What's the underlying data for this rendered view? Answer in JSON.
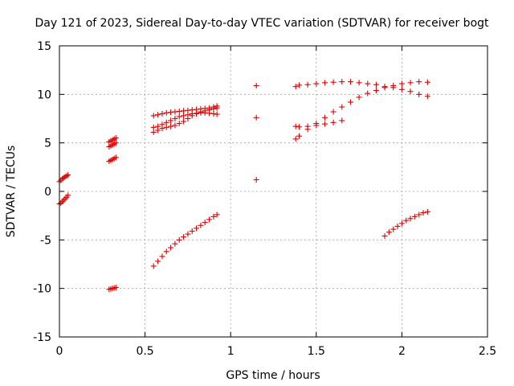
{
  "chart_data": {
    "type": "scatter",
    "title": "Day 121 of 2023, Sidereal Day-to-day VTEC variation (SDTVAR) for receiver bogt",
    "xlabel": "GPS time / hours",
    "ylabel": "SDTVAR / TECUs",
    "xlim": [
      0,
      2.5
    ],
    "ylim": [
      -15,
      15
    ],
    "xticks": [
      "0",
      "0.5",
      "1",
      "1.5",
      "2",
      "2.5"
    ],
    "yticks": [
      "-15",
      "-10",
      "-5",
      "0",
      "5",
      "10",
      "15"
    ],
    "grid": true,
    "marker": "plus",
    "color": "#e00000",
    "series": [
      {
        "x": [
          0.0,
          0.008,
          0.017,
          0.025,
          0.033,
          0.042,
          0.05
        ],
        "y": [
          1.0,
          1.15,
          1.3,
          1.4,
          1.5,
          1.6,
          1.7
        ]
      },
      {
        "x": [
          0.0,
          0.008,
          0.017,
          0.025,
          0.033,
          0.042,
          0.05
        ],
        "y": [
          -1.3,
          -1.2,
          -1.05,
          -0.9,
          -0.75,
          -0.6,
          -0.4
        ]
      },
      {
        "x": [
          0.29,
          0.3,
          0.31,
          0.32,
          0.33
        ],
        "y": [
          5.1,
          5.2,
          5.3,
          5.4,
          5.5
        ]
      },
      {
        "x": [
          0.29,
          0.3,
          0.31,
          0.32,
          0.33
        ],
        "y": [
          4.6,
          4.7,
          4.8,
          4.9,
          5.0
        ]
      },
      {
        "x": [
          0.29,
          0.3,
          0.31,
          0.32,
          0.33
        ],
        "y": [
          3.1,
          3.2,
          3.3,
          3.4,
          3.5
        ]
      },
      {
        "x": [
          0.29,
          0.3,
          0.31,
          0.32,
          0.33
        ],
        "y": [
          -10.1,
          -10.05,
          -10.0,
          -9.95,
          -9.9
        ]
      },
      {
        "x": [
          0.55,
          0.575,
          0.6,
          0.625,
          0.65,
          0.675,
          0.7,
          0.725,
          0.75,
          0.775,
          0.8,
          0.825,
          0.85,
          0.875,
          0.9,
          0.92
        ],
        "y": [
          7.8,
          7.9,
          8.0,
          8.1,
          8.15,
          8.2,
          8.25,
          8.3,
          8.35,
          8.4,
          8.45,
          8.5,
          8.55,
          8.6,
          8.7,
          8.8
        ]
      },
      {
        "x": [
          0.55,
          0.575,
          0.6,
          0.625,
          0.65,
          0.675,
          0.7,
          0.725,
          0.75,
          0.775,
          0.8,
          0.825,
          0.85,
          0.875,
          0.9,
          0.92
        ],
        "y": [
          6.6,
          6.7,
          6.9,
          7.1,
          7.3,
          7.5,
          7.7,
          7.8,
          7.9,
          8.0,
          8.05,
          8.1,
          8.1,
          8.05,
          8.0,
          7.95
        ]
      },
      {
        "x": [
          0.55,
          0.575,
          0.6,
          0.625,
          0.65,
          0.675,
          0.7,
          0.725,
          0.75,
          0.775,
          0.8,
          0.825,
          0.85,
          0.875,
          0.9,
          0.92
        ],
        "y": [
          6.1,
          6.3,
          6.5,
          6.6,
          6.7,
          6.8,
          7.0,
          7.2,
          7.5,
          7.8,
          8.0,
          8.2,
          8.3,
          8.4,
          8.5,
          8.6
        ]
      },
      {
        "x": [
          0.55,
          0.575,
          0.6,
          0.625,
          0.65,
          0.675,
          0.7,
          0.725,
          0.75,
          0.775,
          0.8,
          0.825,
          0.85,
          0.875,
          0.9,
          0.92
        ],
        "y": [
          -7.7,
          -7.2,
          -6.7,
          -6.2,
          -5.8,
          -5.4,
          -5.0,
          -4.7,
          -4.4,
          -4.1,
          -3.8,
          -3.5,
          -3.2,
          -2.9,
          -2.6,
          -2.4
        ]
      },
      {
        "x": [
          1.15,
          1.15,
          1.15
        ],
        "y": [
          10.9,
          7.6,
          1.2
        ]
      },
      {
        "x": [
          1.38,
          1.4,
          1.45,
          1.5,
          1.55,
          1.6,
          1.65,
          1.7,
          1.75,
          1.8,
          1.85,
          1.9,
          1.95,
          2.0,
          2.05,
          2.1,
          2.15
        ],
        "y": [
          10.8,
          10.95,
          11.0,
          11.1,
          11.2,
          11.25,
          11.3,
          11.3,
          11.2,
          11.1,
          11.0,
          10.8,
          10.7,
          10.5,
          10.3,
          10.0,
          9.8
        ]
      },
      {
        "x": [
          1.38,
          1.4,
          1.45,
          1.5,
          1.55,
          1.6,
          1.65,
          1.7,
          1.75,
          1.8,
          1.85,
          1.9,
          1.95,
          2.0,
          2.05,
          2.1,
          2.15
        ],
        "y": [
          5.4,
          5.7,
          6.4,
          7.0,
          7.6,
          8.2,
          8.7,
          9.2,
          9.7,
          10.1,
          10.4,
          10.7,
          10.9,
          11.1,
          11.2,
          11.3,
          11.25
        ]
      },
      {
        "x": [
          1.38,
          1.4,
          1.45,
          1.5,
          1.55,
          1.6,
          1.65
        ],
        "y": [
          6.7,
          6.65,
          6.7,
          6.8,
          6.95,
          7.1,
          7.3
        ]
      },
      {
        "x": [
          1.9,
          1.925,
          1.95,
          1.975,
          2.0,
          2.025,
          2.05,
          2.075,
          2.1,
          2.125,
          2.15
        ],
        "y": [
          -4.6,
          -4.2,
          -3.9,
          -3.6,
          -3.3,
          -3.0,
          -2.8,
          -2.6,
          -2.4,
          -2.2,
          -2.1
        ]
      }
    ]
  }
}
